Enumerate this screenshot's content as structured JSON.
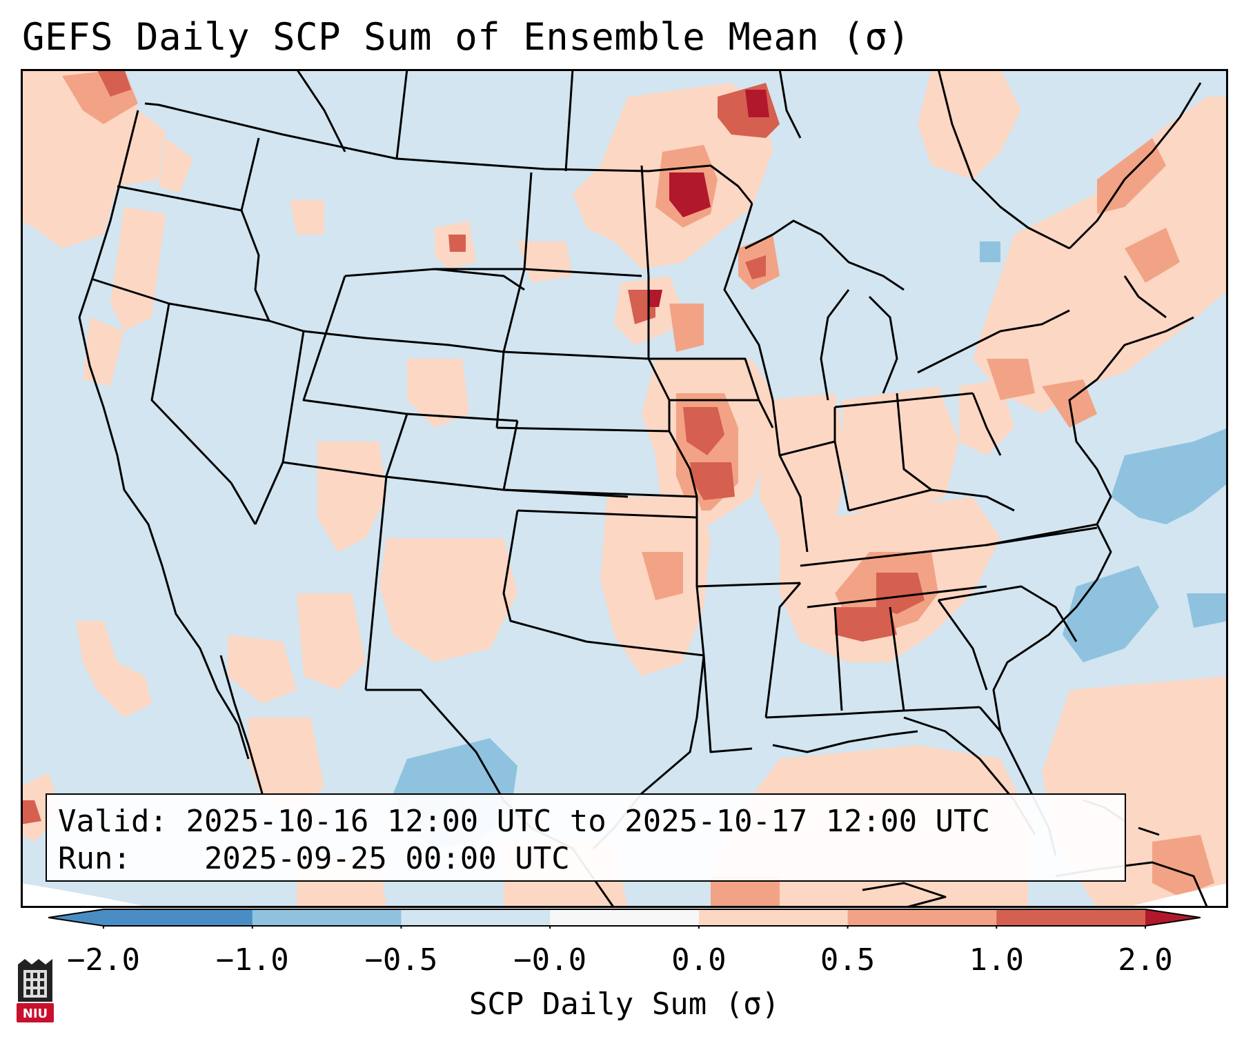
{
  "title": "GEFS Daily SCP Sum of Ensemble Mean (σ)",
  "info": {
    "valid_label": "Valid:",
    "valid_value": "2025-10-16 12:00 UTC to 2025-10-17 12:00 UTC",
    "run_label": "Run:",
    "run_value": "2025-09-25 00:00 UTC"
  },
  "colorbar": {
    "label": "SCP Daily Sum (σ)",
    "ticks": [
      "−2.0",
      "−1.0",
      "−0.5",
      "−0.0",
      "0.0",
      "0.5",
      "1.0",
      "2.0"
    ],
    "colors": [
      "#4a8dc4",
      "#8fc2de",
      "#d2e5f0",
      "#f7f7f7",
      "#fbd7c4",
      "#f2a385",
      "#d5604f",
      "#b2182b"
    ]
  },
  "logo": {
    "text": "NIU"
  },
  "map": {
    "background_category_color": "#d2e5f0",
    "legend_colors": {
      "light_positive": "#fbd7c4",
      "moderate_positive": "#f2a385",
      "strong_positive": "#d5604f",
      "very_strong_positive": "#b2182b",
      "light_negative": "#8fc2de"
    }
  }
}
